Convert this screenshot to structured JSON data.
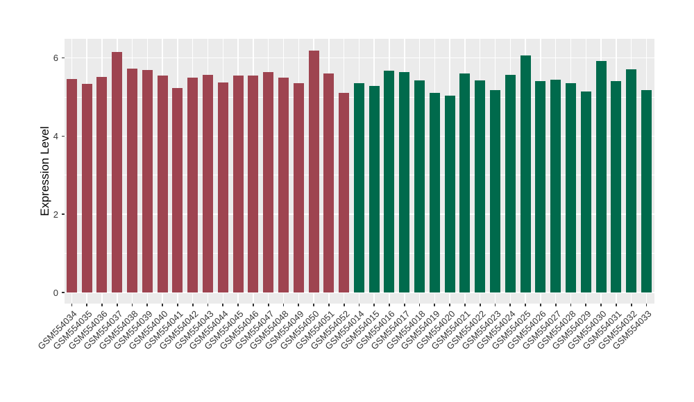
{
  "figure": {
    "background": "#ffffff",
    "panel_background": "#EBEBEB",
    "gridline_color": "#ffffff",
    "tick_color": "#333333",
    "text_color": "#333333",
    "axis_title_color": "#000000"
  },
  "chart_data": {
    "type": "bar",
    "title": "",
    "xlabel": "",
    "ylabel": "Expression Level",
    "ylim": [
      -0.28,
      6.49
    ],
    "y_major_ticks": [
      0,
      2,
      4,
      6
    ],
    "y_minor_gridlines": [
      1,
      3,
      5
    ],
    "grid": "on",
    "legend": "none",
    "categories": [
      "GSM554034",
      "GSM554035",
      "GSM554036",
      "GSM554037",
      "GSM554038",
      "GSM554039",
      "GSM554040",
      "GSM554041",
      "GSM554042",
      "GSM554043",
      "GSM554044",
      "GSM554045",
      "GSM554046",
      "GSM554047",
      "GSM554048",
      "GSM554049",
      "GSM554050",
      "GSM554051",
      "GSM554052",
      "GSM554014",
      "GSM554015",
      "GSM554016",
      "GSM554017",
      "GSM554018",
      "GSM554019",
      "GSM554020",
      "GSM554021",
      "GSM554022",
      "GSM554023",
      "GSM554024",
      "GSM554025",
      "GSM554026",
      "GSM554027",
      "GSM554028",
      "GSM554029",
      "GSM554030",
      "GSM554031",
      "GSM554032",
      "GSM554033"
    ],
    "values": [
      5.47,
      5.33,
      5.52,
      6.15,
      5.72,
      5.69,
      5.55,
      5.23,
      5.49,
      5.56,
      5.38,
      5.55,
      5.55,
      5.63,
      5.5,
      5.35,
      6.18,
      5.61,
      5.1,
      5.35,
      5.29,
      5.68,
      5.64,
      5.42,
      5.1,
      5.03,
      5.6,
      5.43,
      5.18,
      5.57,
      6.06,
      5.4,
      5.44,
      5.35,
      5.15,
      5.93,
      5.41,
      5.71,
      5.17
    ],
    "bar_groups": [
      "group1",
      "group1",
      "group1",
      "group1",
      "group1",
      "group1",
      "group1",
      "group1",
      "group1",
      "group1",
      "group1",
      "group1",
      "group1",
      "group1",
      "group1",
      "group1",
      "group1",
      "group1",
      "group1",
      "group2",
      "group2",
      "group2",
      "group2",
      "group2",
      "group2",
      "group2",
      "group2",
      "group2",
      "group2",
      "group2",
      "group2",
      "group2",
      "group2",
      "group2",
      "group2",
      "group2",
      "group2",
      "group2",
      "group2"
    ],
    "group_colors": {
      "group1": "#9E4450",
      "group2": "#006A4C"
    }
  }
}
